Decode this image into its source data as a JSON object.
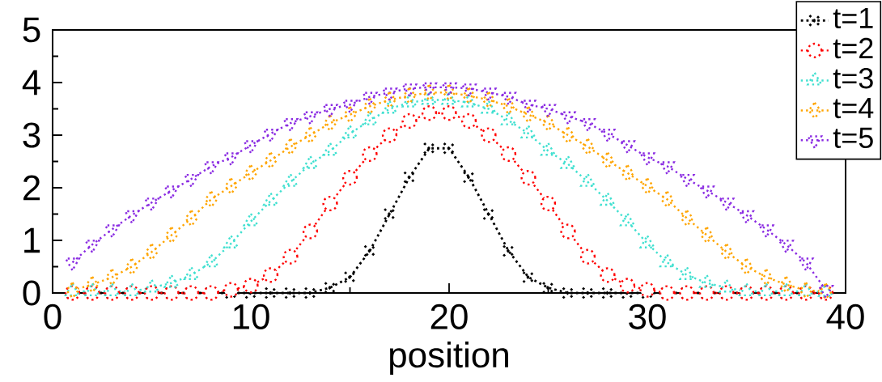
{
  "chart_data": {
    "type": "line",
    "xlabel": "position",
    "xlim": [
      0,
      40
    ],
    "ylim": [
      0,
      5
    ],
    "xticks": [
      0,
      10,
      20,
      30,
      40
    ],
    "yticks": [
      0,
      1,
      2,
      3,
      4,
      5
    ],
    "legend": "top right",
    "line_style": "dotted",
    "x": [
      1,
      2,
      3,
      4,
      5,
      6,
      7,
      8,
      9,
      10,
      11,
      12,
      13,
      14,
      15,
      16,
      17,
      18,
      19,
      20,
      21,
      22,
      23,
      24,
      25,
      26,
      27,
      28,
      29,
      30,
      31,
      32,
      33,
      34,
      35,
      36,
      37,
      38,
      39
    ],
    "series": [
      {
        "name": "t=1",
        "color": "#000000",
        "marker": "cross",
        "values": [
          0,
          0,
          0,
          0,
          0,
          0,
          0,
          0,
          0,
          0,
          0,
          0,
          0,
          0.1,
          0.3,
          0.8,
          1.5,
          2.2,
          2.75,
          2.75,
          2.2,
          1.5,
          0.8,
          0.3,
          0.1,
          0,
          0,
          0,
          0,
          0,
          0,
          0,
          0,
          0,
          0,
          0,
          0,
          0,
          0
        ]
      },
      {
        "name": "t=2",
        "color": "#ff0000",
        "marker": "circle",
        "values": [
          0,
          0,
          0,
          0,
          0,
          0,
          0,
          0,
          0.06,
          0.14,
          0.34,
          0.69,
          1.17,
          1.7,
          2.19,
          2.64,
          3.0,
          3.27,
          3.42,
          3.42,
          3.27,
          3.0,
          2.64,
          2.19,
          1.7,
          1.17,
          0.69,
          0.34,
          0.14,
          0.06,
          0,
          0,
          0,
          0,
          0,
          0,
          0,
          0,
          0
        ]
      },
      {
        "name": "t=3",
        "color": "#40e0d0",
        "marker": "triangle",
        "values": [
          0.03,
          0.03,
          0.03,
          0.03,
          0.1,
          0.19,
          0.34,
          0.58,
          0.94,
          1.36,
          1.75,
          2.11,
          2.45,
          2.7,
          3.03,
          3.28,
          3.5,
          3.62,
          3.67,
          3.67,
          3.62,
          3.5,
          3.28,
          3.03,
          2.7,
          2.45,
          2.11,
          1.75,
          1.36,
          0.94,
          0.58,
          0.34,
          0.19,
          0.1,
          0.03,
          0.03,
          0.03,
          0.03,
          0.02
        ]
      },
      {
        "name": "t=4",
        "color": "#ffa500",
        "marker": "diamond",
        "values": [
          0.05,
          0.16,
          0.3,
          0.5,
          0.78,
          1.1,
          1.42,
          1.78,
          2.03,
          2.28,
          2.52,
          2.78,
          3.0,
          3.23,
          3.39,
          3.55,
          3.67,
          3.75,
          3.81,
          3.81,
          3.75,
          3.67,
          3.55,
          3.39,
          3.23,
          3.0,
          2.78,
          2.52,
          2.28,
          2.03,
          1.78,
          1.42,
          1.1,
          0.78,
          0.5,
          0.3,
          0.16,
          0.05,
          0.03
        ]
      },
      {
        "name": "t=5",
        "color": "#8a2be2",
        "marker": "triangle_down",
        "values": [
          0.58,
          0.92,
          1.21,
          1.48,
          1.72,
          1.95,
          2.17,
          2.41,
          2.58,
          2.81,
          3.03,
          3.23,
          3.36,
          3.5,
          3.58,
          3.73,
          3.81,
          3.89,
          3.91,
          3.91,
          3.89,
          3.81,
          3.73,
          3.58,
          3.5,
          3.36,
          3.23,
          3.03,
          2.81,
          2.58,
          2.41,
          2.17,
          1.95,
          1.72,
          1.48,
          1.21,
          0.92,
          0.58,
          0.06
        ]
      }
    ]
  }
}
